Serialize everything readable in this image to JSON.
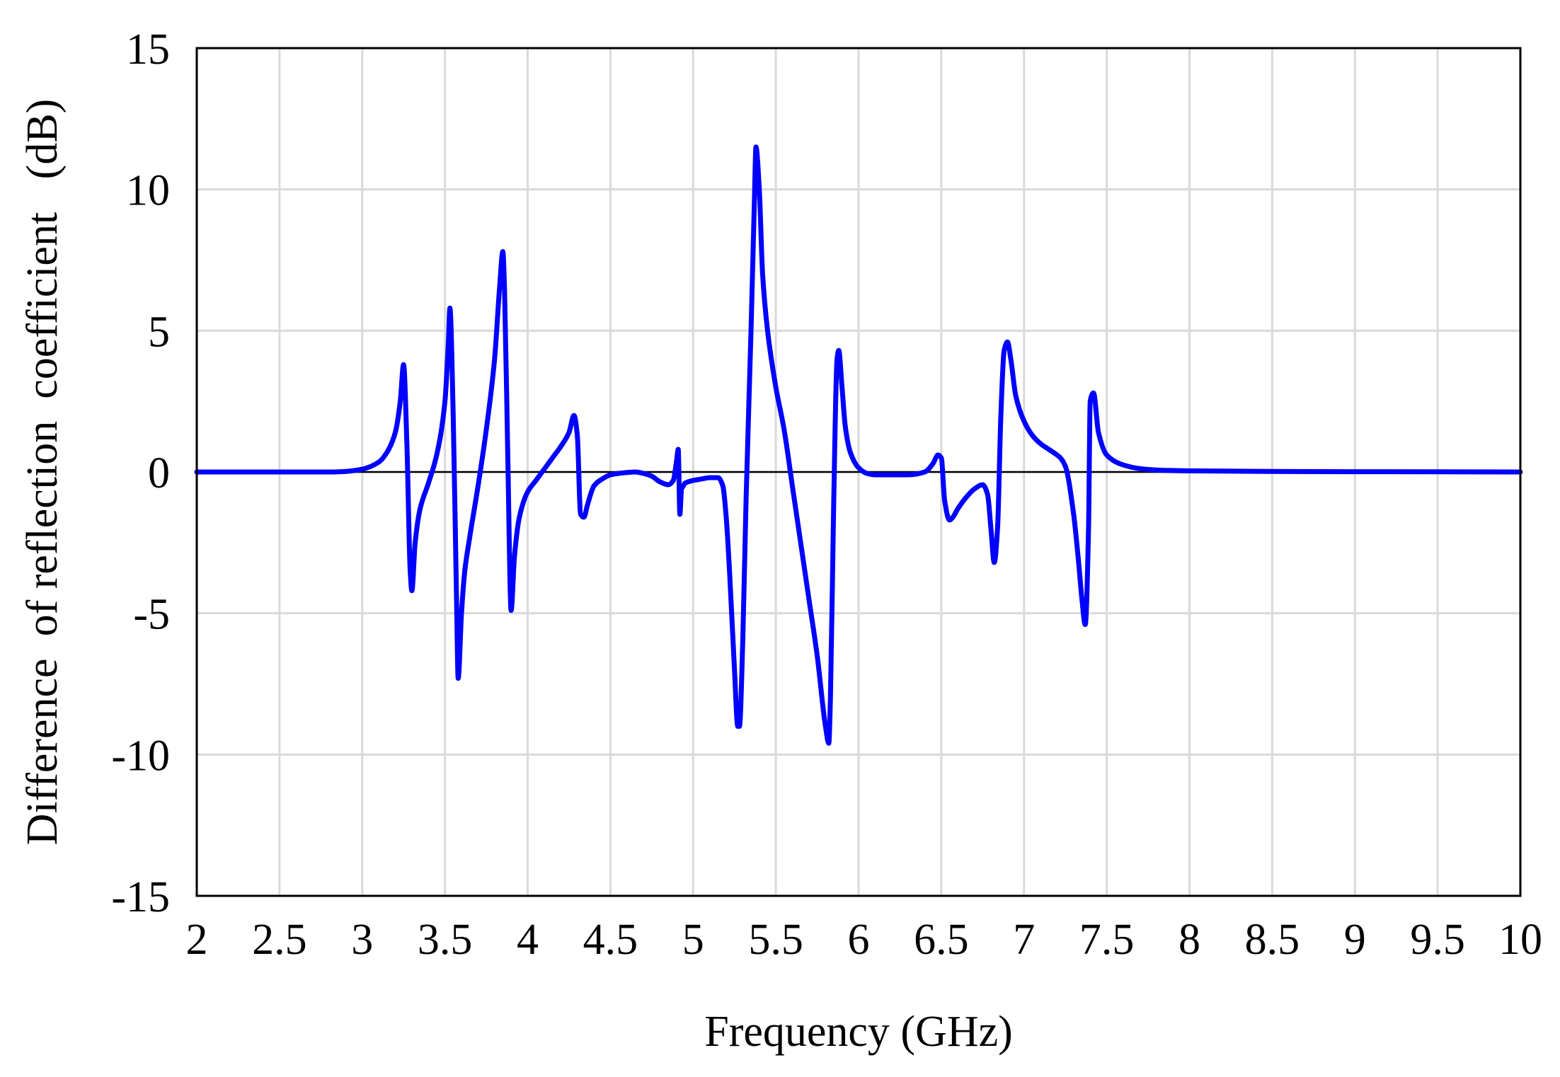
{
  "chart_data": {
    "type": "line",
    "title": "",
    "xlabel": "Frequency  (GHz)",
    "ylabel": "Difference  of reflection  coefficient   (dB)",
    "xlim": [
      2,
      10
    ],
    "ylim": [
      -15,
      15
    ],
    "xticks": [
      2,
      2.5,
      3,
      3.5,
      4,
      4.5,
      5,
      5.5,
      6,
      6.5,
      7,
      7.5,
      8,
      8.5,
      9,
      9.5,
      10
    ],
    "xtick_labels": [
      "2",
      "2.5",
      "3",
      "3.5",
      "4",
      "4.5",
      "5",
      "5.5",
      "6",
      "6.5",
      "7",
      "7.5",
      "8",
      "8.5",
      "9",
      "9.5",
      "10"
    ],
    "yticks": [
      15,
      10,
      5,
      0,
      -5,
      -10,
      -15
    ],
    "ytick_labels": [
      "15",
      "10",
      "5",
      "0",
      "-5",
      "-10",
      "-15"
    ],
    "grid": true,
    "zero_line": true,
    "legend": "none",
    "series": [
      {
        "color": "#0000ff",
        "x": [
          2,
          2.5,
          2.8,
          2.9,
          3.0,
          3.1,
          3.15,
          3.2,
          3.23,
          3.25,
          3.27,
          3.29,
          3.3,
          3.32,
          3.35,
          3.4,
          3.45,
          3.5,
          3.52,
          3.53,
          3.55,
          3.57,
          3.58,
          3.6,
          3.62,
          3.65,
          3.7,
          3.75,
          3.8,
          3.83,
          3.85,
          3.86,
          3.88,
          3.9,
          3.92,
          3.95,
          4.0,
          4.05,
          4.1,
          4.15,
          4.2,
          4.25,
          4.28,
          4.3,
          4.32,
          4.34,
          4.36,
          4.38,
          4.4,
          4.45,
          4.5,
          4.55,
          4.6,
          4.65,
          4.7,
          4.75,
          4.8,
          4.85,
          4.88,
          4.9,
          4.91,
          4.92,
          4.93,
          4.94,
          4.95,
          4.97,
          5.0,
          5.05,
          5.1,
          5.15,
          5.18,
          5.2,
          5.22,
          5.25,
          5.27,
          5.28,
          5.3,
          5.32,
          5.35,
          5.37,
          5.38,
          5.4,
          5.42,
          5.45,
          5.5,
          5.55,
          5.6,
          5.65,
          5.7,
          5.75,
          5.8,
          5.82,
          5.83,
          5.85,
          5.87,
          5.88,
          5.9,
          5.92,
          5.95,
          6.0,
          6.05,
          6.1,
          6.2,
          6.3,
          6.4,
          6.45,
          6.48,
          6.5,
          6.52,
          6.55,
          6.57,
          6.6,
          6.65,
          6.7,
          6.75,
          6.78,
          6.8,
          6.82,
          6.84,
          6.86,
          6.88,
          6.9,
          6.92,
          6.95,
          7.0,
          7.05,
          7.1,
          7.15,
          7.2,
          7.22,
          7.25,
          7.3,
          7.33,
          7.35,
          7.37,
          7.39,
          7.4,
          7.42,
          7.45,
          7.5,
          7.6,
          7.7,
          7.8,
          8.0,
          8.5,
          9.0,
          9.5,
          10.0
        ],
        "y": [
          0,
          0,
          0,
          0.02,
          0.1,
          0.35,
          0.7,
          1.4,
          2.5,
          3.8,
          1.0,
          -3.5,
          -4.2,
          -2.5,
          -1.3,
          -0.4,
          0.6,
          2.5,
          4.5,
          5.8,
          2.0,
          -4.5,
          -7.3,
          -5.0,
          -3.5,
          -2.3,
          -0.5,
          1.5,
          4.0,
          6.5,
          7.8,
          6.5,
          0.5,
          -4.9,
          -3.0,
          -1.6,
          -0.7,
          -0.3,
          0.1,
          0.5,
          0.9,
          1.4,
          2.0,
          1.3,
          -1.5,
          -1.6,
          -1.2,
          -0.8,
          -0.5,
          -0.25,
          -0.1,
          -0.05,
          -0.02,
          0.0,
          -0.05,
          -0.15,
          -0.35,
          -0.45,
          -0.3,
          0.4,
          0.8,
          -1.5,
          -0.6,
          -0.5,
          -0.4,
          -0.35,
          -0.3,
          -0.25,
          -0.2,
          -0.2,
          -0.5,
          -1.6,
          -3.5,
          -7.0,
          -9.0,
          -9.0,
          -6.0,
          -1.0,
          5.0,
          9.5,
          11.5,
          10.0,
          7.0,
          5.0,
          3.0,
          1.5,
          -0.5,
          -2.5,
          -4.5,
          -6.5,
          -9.0,
          -9.6,
          -8.0,
          -1.0,
          4.0,
          4.3,
          3.0,
          1.6,
          0.7,
          0.15,
          -0.05,
          -0.1,
          -0.1,
          -0.1,
          0.0,
          0.3,
          0.6,
          0.5,
          -1.0,
          -1.7,
          -1.6,
          -1.3,
          -0.9,
          -0.6,
          -0.45,
          -0.8,
          -2.0,
          -3.2,
          -2.0,
          2.0,
          4.3,
          4.6,
          4.0,
          2.7,
          1.8,
          1.3,
          1.0,
          0.8,
          0.6,
          0.5,
          0.2,
          -1.5,
          -3.2,
          -4.5,
          -5.4,
          -2.0,
          2.5,
          2.8,
          1.4,
          0.6,
          0.25,
          0.12,
          0.07,
          0.04,
          0.02,
          0.01,
          0.005,
          0
        ]
      }
    ]
  }
}
